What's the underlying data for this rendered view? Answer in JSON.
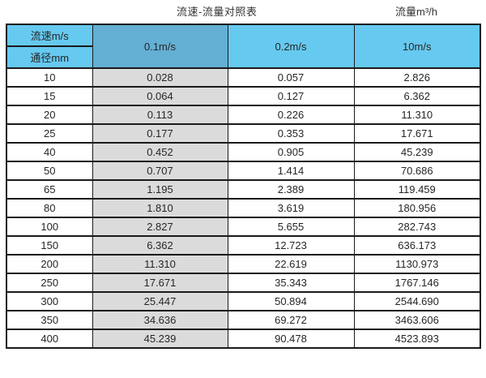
{
  "titles": {
    "main": "流速-流量对照表",
    "unit": "流量m³/h"
  },
  "table": {
    "corner_top": "流速m/s",
    "corner_bottom": "通径mm",
    "columns": [
      "0.1m/s",
      "0.2m/s",
      "10m/s"
    ],
    "rows": [
      [
        "10",
        "0.028",
        "0.057",
        "2.826"
      ],
      [
        "15",
        "0.064",
        "0.127",
        "6.362"
      ],
      [
        "20",
        "0.113",
        "0.226",
        "11.310"
      ],
      [
        "25",
        "0.177",
        "0.353",
        "17.671"
      ],
      [
        "40",
        "0.452",
        "0.905",
        "45.239"
      ],
      [
        "50",
        "0.707",
        "1.414",
        "70.686"
      ],
      [
        "65",
        "1.195",
        "2.389",
        "119.459"
      ],
      [
        "80",
        "1.810",
        "3.619",
        "180.956"
      ],
      [
        "100",
        "2.827",
        "5.655",
        "282.743"
      ],
      [
        "150",
        "6.362",
        "12.723",
        "636.173"
      ],
      [
        "200",
        "11.310",
        "22.619",
        "1130.973"
      ],
      [
        "250",
        "17.671",
        "35.343",
        "1767.146"
      ],
      [
        "300",
        "25.447",
        "50.894",
        "2544.690"
      ],
      [
        "350",
        "34.636",
        "69.272",
        "3463.606"
      ],
      [
        "400",
        "45.239",
        "90.478",
        "4523.893"
      ]
    ]
  },
  "colors": {
    "header_blue": "#66C9F0",
    "highlighted_header_blue": "#64AFD4",
    "highlighted_column_gray": "#DBDBDB",
    "border": "#1A1A1A",
    "text": "#262626"
  },
  "chart_data": {
    "type": "table",
    "title": "流速-流量对照表",
    "units_label": "流量m³/h",
    "column_dimension_label": "流速m/s",
    "row_dimension_label": "通径mm",
    "columns": [
      "0.1m/s",
      "0.2m/s",
      "10m/s"
    ],
    "diameters_mm": [
      10,
      15,
      20,
      25,
      40,
      50,
      65,
      80,
      100,
      150,
      200,
      250,
      300,
      350,
      400
    ],
    "series": [
      {
        "name": "0.1m/s",
        "values": [
          0.028,
          0.064,
          0.113,
          0.177,
          0.452,
          0.707,
          1.195,
          1.81,
          2.827,
          6.362,
          11.31,
          17.671,
          25.447,
          34.636,
          45.239
        ]
      },
      {
        "name": "0.2m/s",
        "values": [
          0.057,
          0.127,
          0.226,
          0.353,
          0.905,
          1.414,
          2.389,
          3.619,
          5.655,
          12.723,
          22.619,
          35.343,
          50.894,
          69.272,
          90.478
        ]
      },
      {
        "name": "10m/s",
        "values": [
          2.826,
          6.362,
          11.31,
          17.671,
          45.239,
          70.686,
          119.459,
          180.956,
          282.743,
          636.173,
          1130.973,
          1767.146,
          2544.69,
          3463.606,
          4523.893
        ]
      }
    ],
    "layout_hints": {
      "highlighted_column": "0.1m/s",
      "grid": true
    }
  }
}
